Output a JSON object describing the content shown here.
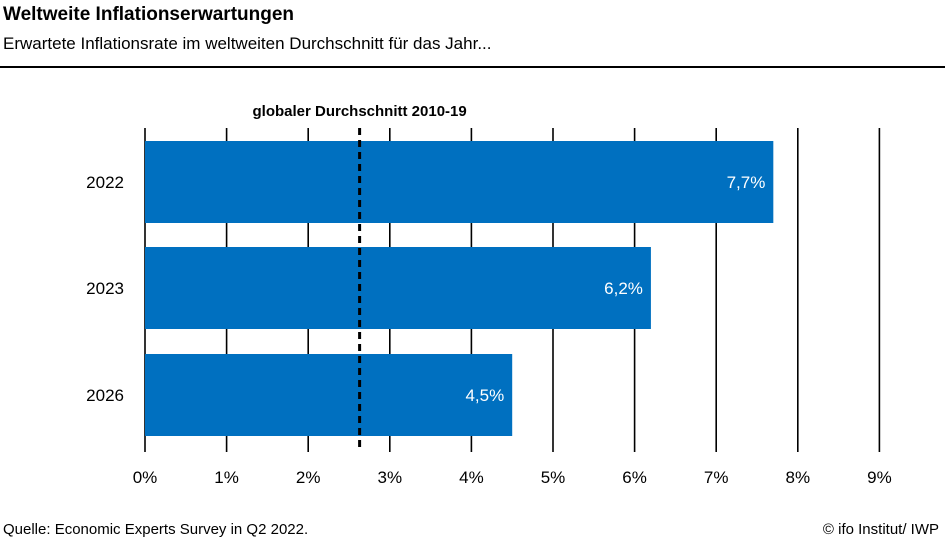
{
  "title": "Weltweite Inflationserwartungen",
  "subtitle": "Erwartete Inflationsrate im weltweiten Durchschnitt für das Jahr...",
  "source": "Quelle: Economic Experts Survey in Q2 2022.",
  "credit": "© ifo Institut/ IWP",
  "chart_data": {
    "type": "bar",
    "orientation": "horizontal",
    "categories": [
      "2022",
      "2023",
      "2026"
    ],
    "values": [
      7.7,
      6.2,
      4.5
    ],
    "value_labels": [
      "7,7%",
      "6,2%",
      "4,5%"
    ],
    "xlim": [
      0,
      9
    ],
    "x_ticks": [
      0,
      1,
      2,
      3,
      4,
      5,
      6,
      7,
      8,
      9
    ],
    "x_tick_labels": [
      "0%",
      "1%",
      "2%",
      "3%",
      "4%",
      "5%",
      "6%",
      "7%",
      "8%",
      "9%"
    ],
    "grid": "vertical",
    "bar_color": "#0070c0",
    "reference_line": {
      "value": 2.63,
      "label": "globaler Durchschnitt 2010-19",
      "style": "dashed"
    }
  }
}
